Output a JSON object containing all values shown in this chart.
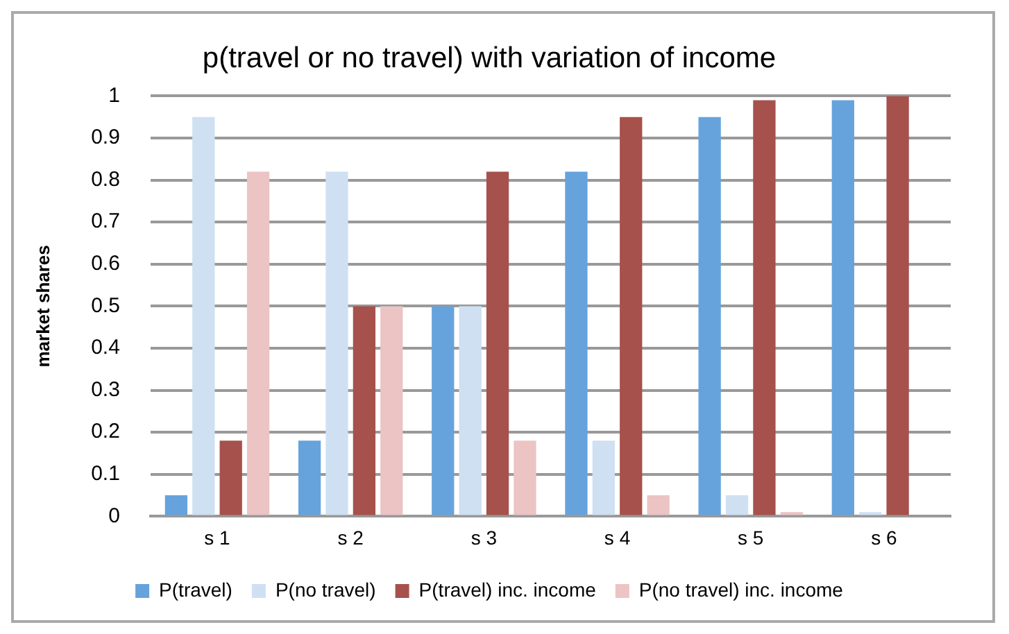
{
  "chart_data": {
    "type": "bar",
    "title": "p(travel or no travel) with variation of income",
    "ylabel": "market shares",
    "categories": [
      "s 1",
      "s 2",
      "s 3",
      "s 4",
      "s 5",
      "s 6"
    ],
    "series": [
      {
        "name": "P(travel)",
        "color": "#66a3dd",
        "values": [
          0.05,
          0.18,
          0.5,
          0.82,
          0.95,
          0.99
        ]
      },
      {
        "name": "P(no travel)",
        "color": "#cfe0f2",
        "values": [
          0.95,
          0.82,
          0.5,
          0.18,
          0.05,
          0.01
        ]
      },
      {
        "name": "P(travel) inc. income",
        "color": "#a6514b",
        "values": [
          0.18,
          0.5,
          0.82,
          0.95,
          0.99,
          1.0
        ]
      },
      {
        "name": "P(no travel) inc. income",
        "color": "#ebc4c3",
        "values": [
          0.82,
          0.5,
          0.18,
          0.05,
          0.01,
          0.0
        ]
      }
    ],
    "ylim": [
      0,
      1
    ],
    "yticks": [
      0,
      0.1,
      0.2,
      0.3,
      0.4,
      0.5,
      0.6,
      0.7,
      0.8,
      0.9,
      1
    ],
    "grid": "y",
    "legend": "bottom"
  }
}
